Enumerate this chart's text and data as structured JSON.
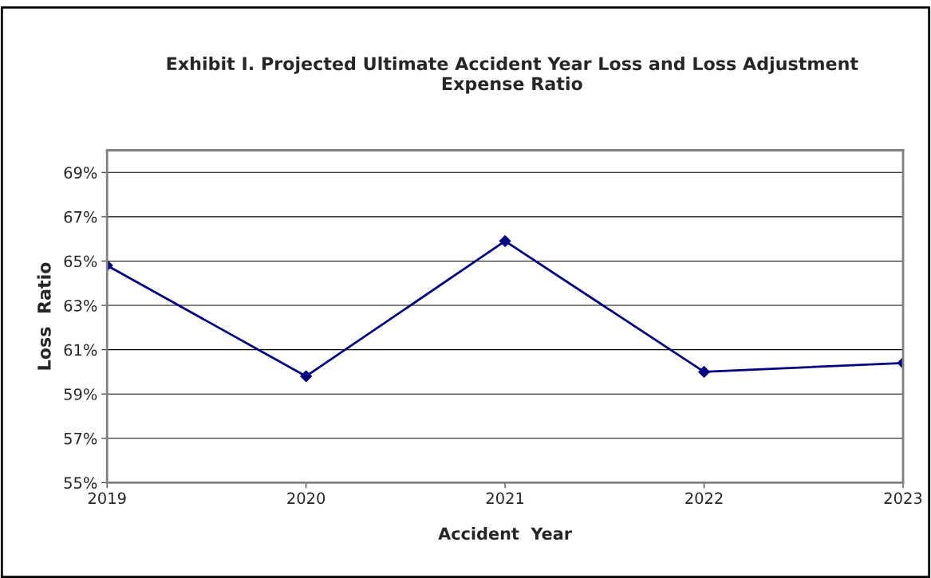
{
  "chart_data": {
    "type": "line",
    "title": "Exhibit I. Projected Ultimate Accident Year Loss and Loss Adjustment\nExpense Ratio",
    "xlabel": "Accident  Year",
    "ylabel": "Loss  Ratio",
    "categories": [
      "2019",
      "2020",
      "2021",
      "2022",
      "2023"
    ],
    "series": [
      {
        "color": "#000080",
        "values": [
          64.8,
          59.8,
          65.9,
          60.0,
          60.4
        ]
      }
    ],
    "ylim": [
      55,
      70
    ],
    "yticks": [
      {
        "value": 55,
        "label": "55%"
      },
      {
        "value": 57,
        "label": "57%"
      },
      {
        "value": 59,
        "label": "59%"
      },
      {
        "value": 61,
        "label": "61%"
      },
      {
        "value": 63,
        "label": "63%"
      },
      {
        "value": 65,
        "label": "65%"
      },
      {
        "value": 67,
        "label": "67%"
      },
      {
        "value": 69,
        "label": "69%"
      }
    ],
    "grid": "y",
    "marker": "diamond",
    "line_style": "solid",
    "legend": false
  }
}
